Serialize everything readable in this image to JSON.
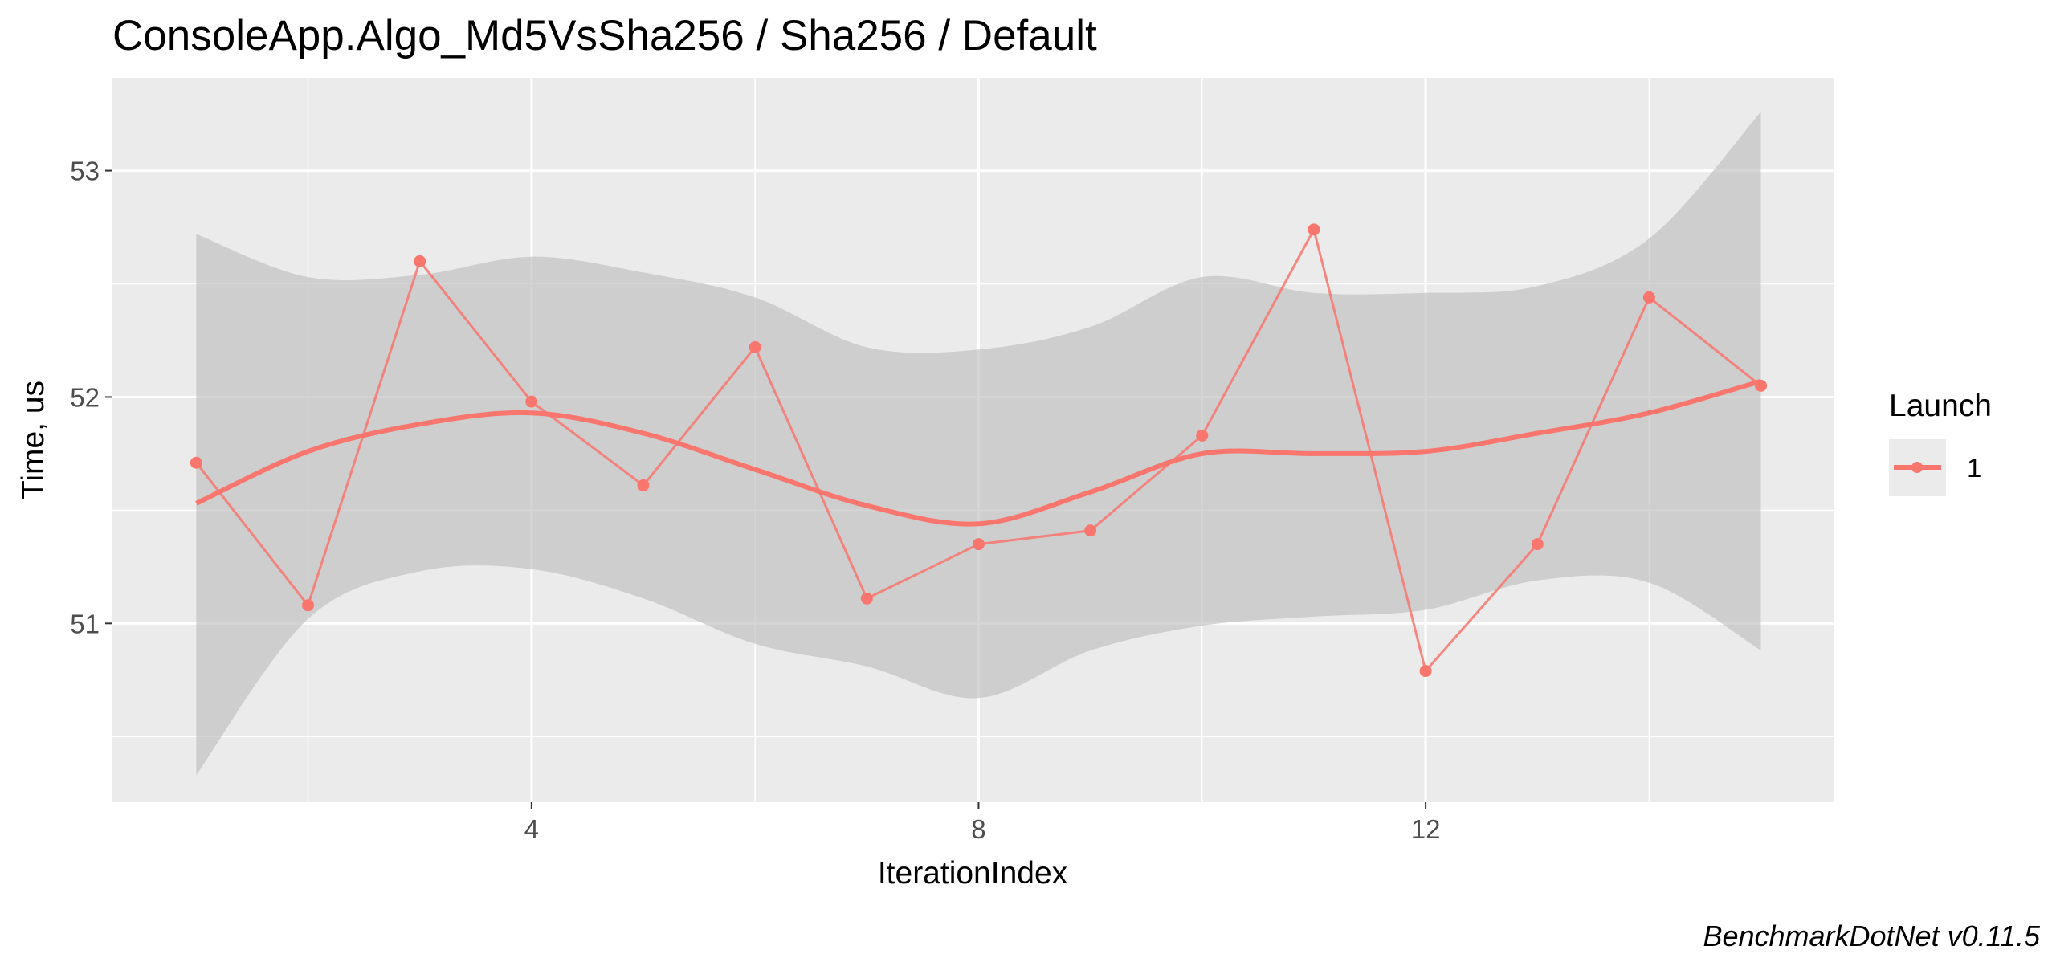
{
  "chart_data": {
    "type": "line",
    "title": "ConsoleApp.Algo_Md5VsSha256 / Sha256 / Default",
    "xlabel": "IterationIndex",
    "ylabel": "Time, us",
    "caption": "BenchmarkDotNet v0.11.5",
    "xlim": [
      0.25,
      15.65
    ],
    "ylim": [
      50.21,
      53.41
    ],
    "x_ticks": [
      4,
      8,
      12
    ],
    "x_tick_labels": [
      "4",
      "8",
      "12"
    ],
    "x_minor_ticks": [
      2,
      6,
      10,
      14
    ],
    "y_ticks": [
      51,
      52,
      53
    ],
    "y_tick_labels": [
      "51",
      "52",
      "53"
    ],
    "y_minor_ticks": [
      50.5,
      51.5,
      52.5
    ],
    "grid": true,
    "background": "#ebebeb",
    "legend": {
      "title": "Launch",
      "position": "right",
      "entries": [
        "1"
      ]
    },
    "series": [
      {
        "name": "1",
        "color": "#f8766d",
        "x": [
          1,
          2,
          3,
          4,
          5,
          6,
          7,
          8,
          9,
          10,
          11,
          12,
          13,
          14,
          15
        ],
        "y": [
          51.71,
          51.08,
          52.6,
          51.98,
          51.61,
          52.22,
          51.11,
          51.35,
          51.41,
          51.83,
          52.74,
          50.79,
          51.35,
          52.44,
          52.05
        ]
      }
    ],
    "smooth": {
      "color": "#f8766d",
      "band_color": "#bebebe",
      "x": [
        1,
        2,
        3,
        4,
        5,
        6,
        7,
        8,
        9,
        10,
        11,
        12,
        13,
        14,
        15
      ],
      "y": [
        51.53,
        51.76,
        51.88,
        51.93,
        51.84,
        51.68,
        51.52,
        51.44,
        51.58,
        51.75,
        51.75,
        51.76,
        51.84,
        51.93,
        52.07
      ],
      "upper": [
        52.72,
        52.53,
        52.54,
        52.62,
        52.55,
        52.44,
        52.22,
        52.21,
        52.31,
        52.53,
        52.46,
        52.46,
        52.49,
        52.7,
        53.26
      ],
      "lower": [
        50.33,
        51.02,
        51.23,
        51.24,
        51.11,
        50.91,
        50.81,
        50.67,
        50.88,
        50.99,
        51.03,
        51.06,
        51.19,
        51.18,
        50.88
      ]
    }
  }
}
